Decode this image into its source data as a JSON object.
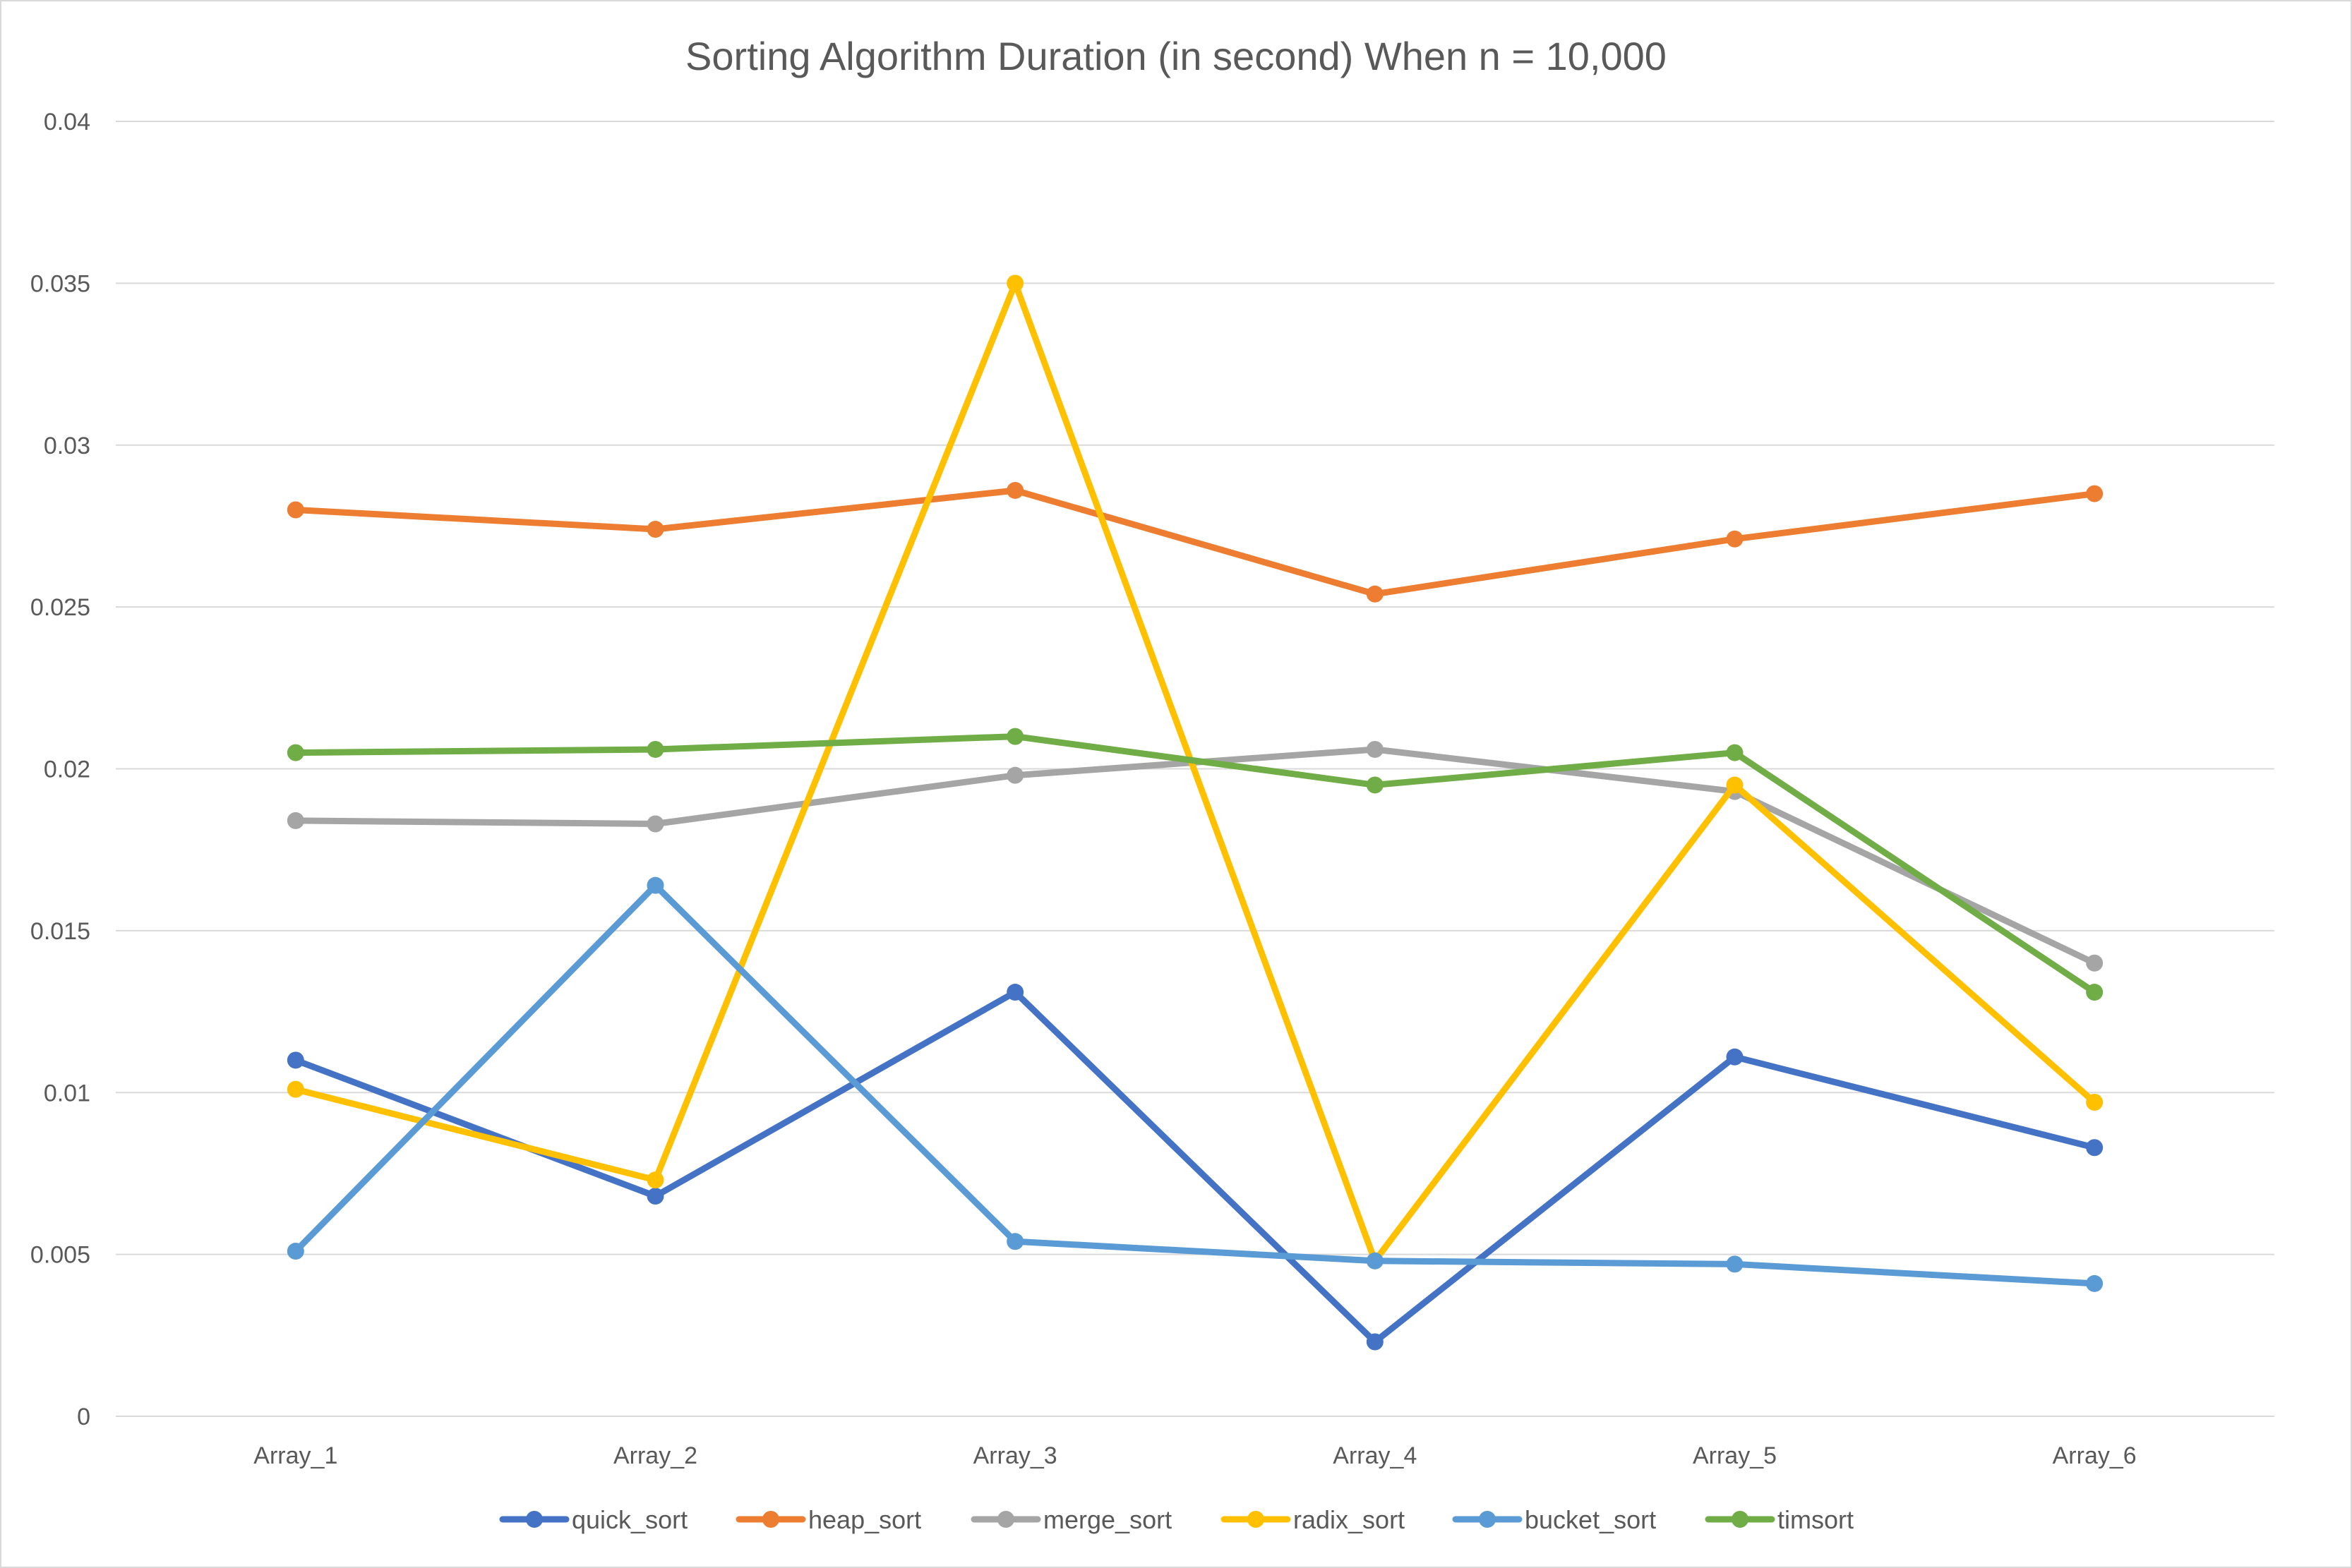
{
  "chart_data": {
    "type": "line",
    "title": "Sorting Algorithm Duration (in second) When n = 10,000",
    "xlabel": "",
    "ylabel": "",
    "categories": [
      "Array_1",
      "Array_2",
      "Array_3",
      "Array_4",
      "Array_5",
      "Array_6"
    ],
    "ylim": [
      0,
      0.04
    ],
    "yticks": [
      "0",
      "0.005",
      "0.01",
      "0.015",
      "0.02",
      "0.025",
      "0.03",
      "0.035",
      "0.04"
    ],
    "ytick_values": [
      0,
      0.005,
      0.01,
      0.015,
      0.02,
      0.025,
      0.03,
      0.035,
      0.04
    ],
    "grid": true,
    "legend_position": "bottom",
    "series": [
      {
        "name": "quick_sort",
        "color": "#4472C4",
        "values": [
          0.011,
          0.0068,
          0.0131,
          0.0023,
          0.0111,
          0.0083
        ]
      },
      {
        "name": "heap_sort",
        "color": "#ED7D31",
        "values": [
          0.028,
          0.0274,
          0.0286,
          0.0254,
          0.0271,
          0.0285
        ]
      },
      {
        "name": "merge_sort",
        "color": "#A5A5A5",
        "values": [
          0.0184,
          0.0183,
          0.0198,
          0.0206,
          0.0193,
          0.014
        ]
      },
      {
        "name": "radix_sort",
        "color": "#FFC000",
        "values": [
          0.0101,
          0.0073,
          0.035,
          0.0048,
          0.0195,
          0.0097
        ]
      },
      {
        "name": "bucket_sort",
        "color": "#5B9BD5",
        "values": [
          0.0051,
          0.0164,
          0.0054,
          0.0048,
          0.0047,
          0.0041
        ]
      },
      {
        "name": "timsort",
        "color": "#70AD47",
        "values": [
          0.0205,
          0.0206,
          0.021,
          0.0195,
          0.0205,
          0.0131
        ]
      }
    ]
  }
}
